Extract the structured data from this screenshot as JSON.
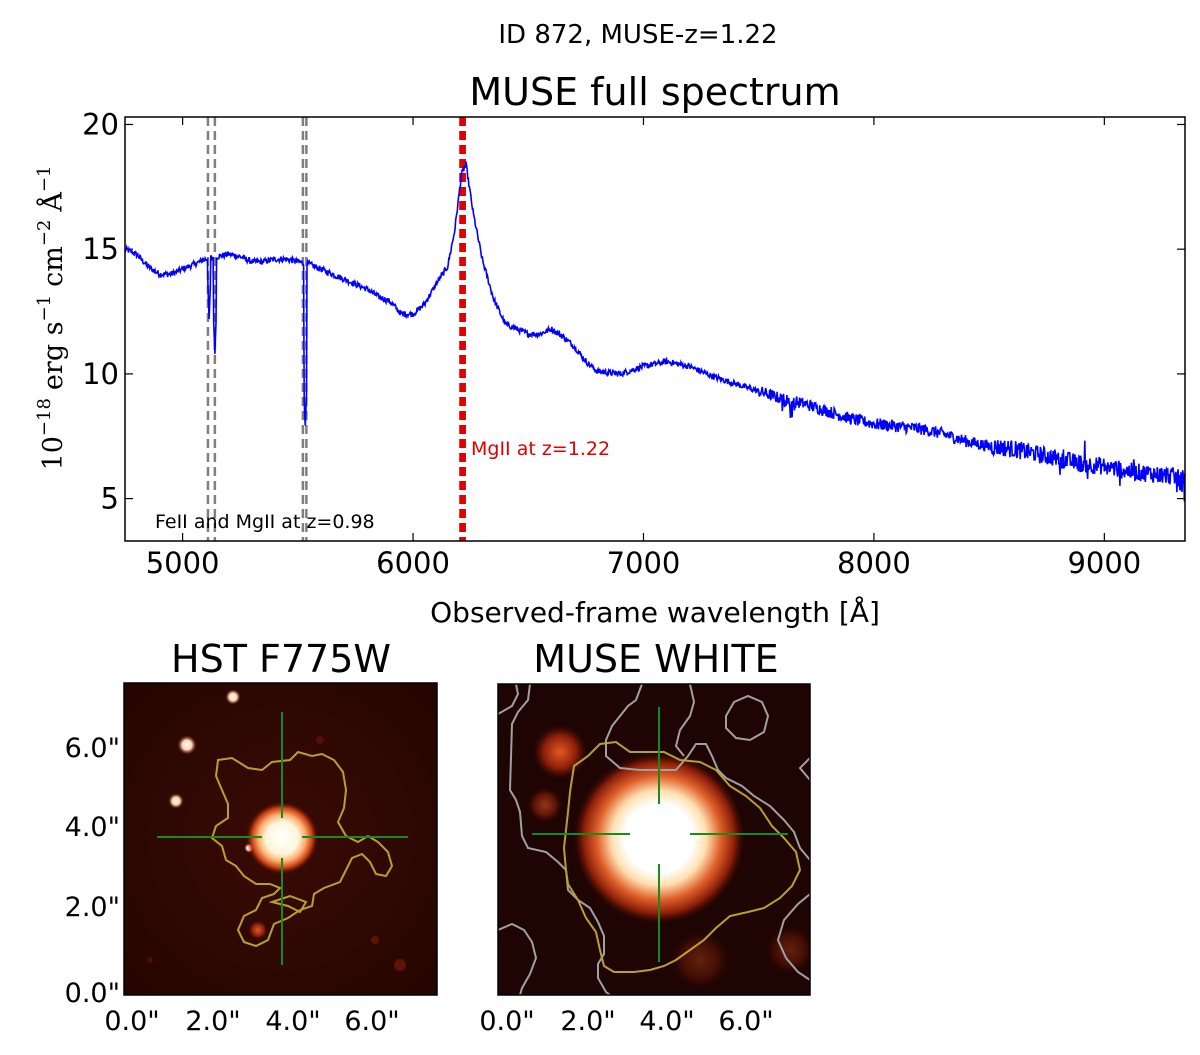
{
  "figure": {
    "suptitle": "ID 872, MUSE-z=1.22"
  },
  "chart_data": [
    {
      "type": "line",
      "title": "MUSE full spectrum",
      "xlabel": "Observed-frame wavelength [Å]",
      "ylabel": "10^-18 erg s^-1 cm^-2 Å^-1",
      "ylabel_parts": {
        "pow_base": "10",
        "pow_exp": "−18",
        "erg": "erg s",
        "s_exp": "−1",
        "cm": "cm",
        "cm_exp": "−2",
        "ang": "Å",
        "ang_exp": "−1"
      },
      "xlim": [
        4750,
        9350
      ],
      "ylim": [
        3.3,
        20.3
      ],
      "xticks": [
        5000,
        6000,
        7000,
        8000,
        9000
      ],
      "yticks": [
        5,
        10,
        15,
        20
      ],
      "grid": false,
      "series": [
        {
          "color": "#0000ff",
          "x": [
            4750,
            4800,
            4850,
            4900,
            4950,
            5000,
            5050,
            5100,
            5150,
            5200,
            5250,
            5300,
            5350,
            5400,
            5450,
            5500,
            5550,
            5600,
            5650,
            5700,
            5750,
            5800,
            5850,
            5900,
            5950,
            6000,
            6050,
            6100,
            6150,
            6180,
            6210,
            6230,
            6260,
            6300,
            6350,
            6400,
            6450,
            6500,
            6550,
            6600,
            6650,
            6700,
            6750,
            6800,
            6900,
            7000,
            7100,
            7200,
            7300,
            7400,
            7500,
            7600,
            7700,
            7800,
            7900,
            8000,
            8100,
            8200,
            8300,
            8400,
            8500,
            8600,
            8700,
            8800,
            8900,
            9000,
            9100,
            9200,
            9300,
            9350
          ],
          "y": [
            15.0,
            14.8,
            14.3,
            14.0,
            14.0,
            14.2,
            14.4,
            14.6,
            14.7,
            14.8,
            14.7,
            14.5,
            14.5,
            14.6,
            14.6,
            14.5,
            14.4,
            14.2,
            14.0,
            13.8,
            13.6,
            13.4,
            13.1,
            12.9,
            12.4,
            12.4,
            12.8,
            13.6,
            14.3,
            15.7,
            18.0,
            18.4,
            16.5,
            14.6,
            13.0,
            12.0,
            11.8,
            11.6,
            11.6,
            11.8,
            11.5,
            11.1,
            10.5,
            10.1,
            10.0,
            10.3,
            10.5,
            10.3,
            9.9,
            9.6,
            9.3,
            9.0,
            8.8,
            8.5,
            8.2,
            8.0,
            7.9,
            7.8,
            7.6,
            7.3,
            7.1,
            7.0,
            6.8,
            6.6,
            6.4,
            6.3,
            6.1,
            6.0,
            5.9,
            5.8
          ]
        }
      ],
      "absorption_dips": [
        {
          "x": 5115,
          "y": 12.2
        },
        {
          "x": 5140,
          "y": 10.8
        },
        {
          "x": 5532,
          "y": 7.8
        }
      ],
      "lines": [
        {
          "x": [
            5110,
            5140,
            5522,
            5537
          ],
          "color": "#808080",
          "style": "dashed",
          "label": "FeII and MgII at z=0.98"
        },
        {
          "x": [
            6208,
            6222
          ],
          "color": "#e00000",
          "style": "dashed",
          "label": "MgII at z=1.22"
        }
      ],
      "annotations": {
        "gray_label": "FeII and MgII at z=0.98",
        "red_label": "MgII at z=1.22"
      }
    }
  ],
  "panels": {
    "hst": {
      "title": "HST F775W",
      "xticks": [
        "0.0\"",
        "2.0\"",
        "4.0\"",
        "6.0\""
      ],
      "yticks": [
        "0.0\"",
        "2.0\"",
        "4.0\"",
        "6.0\""
      ]
    },
    "muse": {
      "title": "MUSE WHITE",
      "xticks": [
        "0.0\"",
        "2.0\"",
        "4.0\"",
        "6.0\""
      ]
    }
  },
  "colors": {
    "spectrum": "#0000ff",
    "gray_lines": "#808080",
    "red_lines": "#e00000",
    "crosshair": "#1a8a1a",
    "contour_yellow": "#b8a030",
    "contour_gray": "#a0a0a0"
  }
}
